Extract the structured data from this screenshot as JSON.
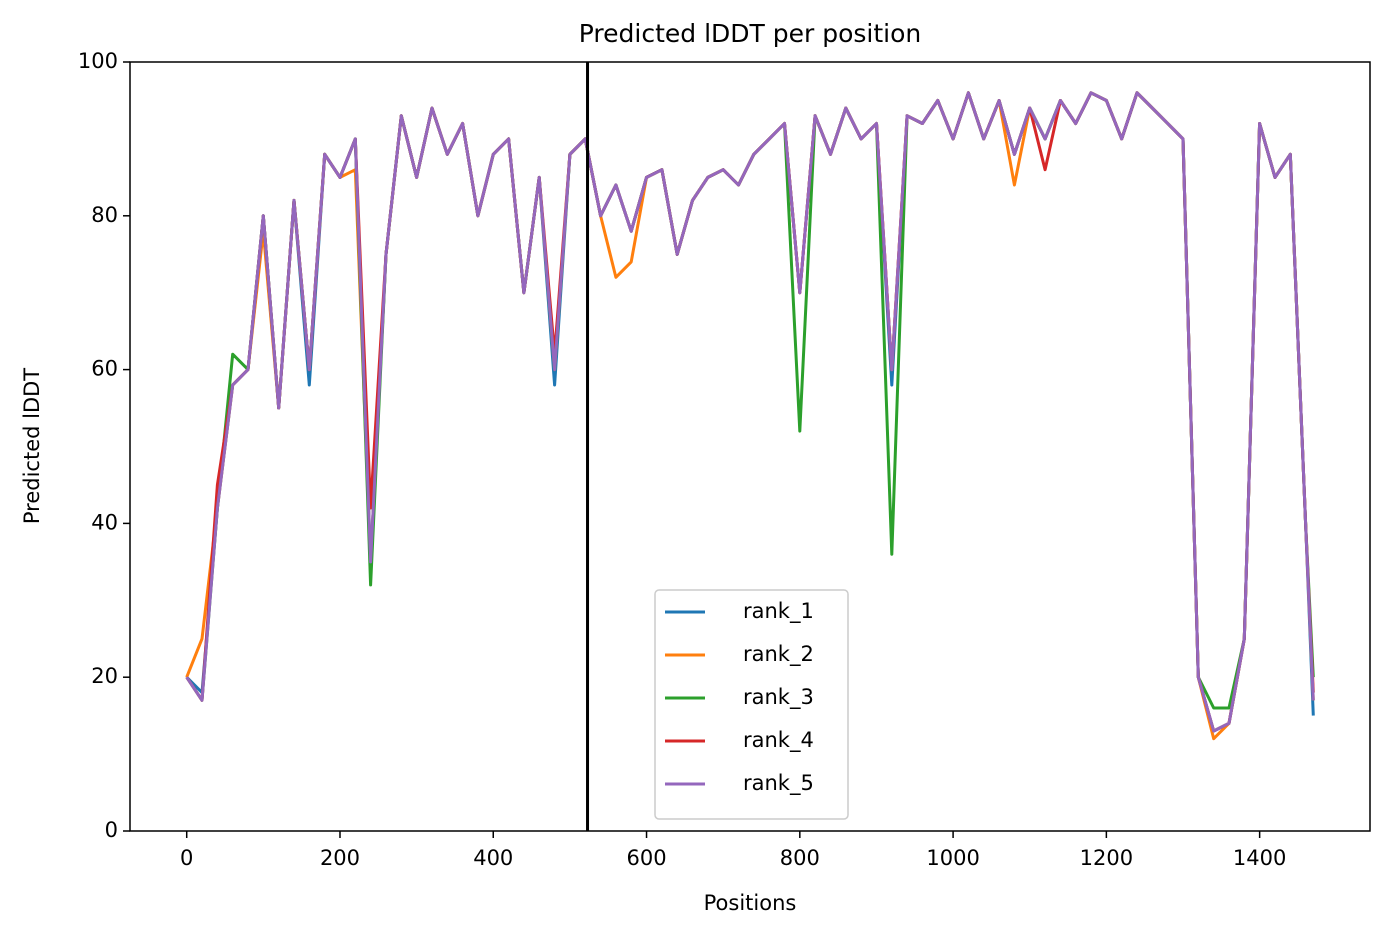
{
  "chart_data": {
    "type": "line",
    "title": "Predicted lDDT per position",
    "xlabel": "Positions",
    "ylabel": "Predicted lDDT",
    "x": [
      0,
      20,
      40,
      60,
      80,
      100,
      120,
      140,
      160,
      180,
      200,
      220,
      240,
      260,
      280,
      300,
      320,
      340,
      360,
      380,
      400,
      420,
      440,
      460,
      480,
      500,
      520,
      540,
      560,
      580,
      600,
      620,
      640,
      660,
      680,
      700,
      720,
      740,
      760,
      780,
      800,
      820,
      840,
      860,
      880,
      900,
      920,
      940,
      960,
      980,
      1000,
      1020,
      1040,
      1060,
      1080,
      1100,
      1120,
      1140,
      1160,
      1180,
      1200,
      1220,
      1240,
      1260,
      1280,
      1300,
      1320,
      1340,
      1360,
      1380,
      1400,
      1420,
      1440,
      1460,
      1470
    ],
    "series": [
      {
        "name": "rank_1",
        "color": "#1f77b4",
        "values": [
          20,
          18,
          42,
          58,
          60,
          80,
          55,
          82,
          58,
          88,
          85,
          90,
          35,
          75,
          93,
          85,
          94,
          88,
          92,
          80,
          88,
          90,
          70,
          85,
          58,
          88,
          90,
          80,
          84,
          78,
          85,
          86,
          75,
          82,
          85,
          86,
          84,
          88,
          90,
          92,
          70,
          93,
          88,
          94,
          90,
          92,
          58,
          93,
          92,
          95,
          90,
          96,
          90,
          95,
          88,
          94,
          90,
          95,
          92,
          96,
          95,
          90,
          96,
          94,
          92,
          90,
          20,
          13,
          14,
          25,
          92,
          85,
          88,
          40,
          15
        ]
      },
      {
        "name": "rank_2",
        "color": "#ff7f0e",
        "values": [
          20,
          25,
          42,
          58,
          60,
          78,
          55,
          82,
          60,
          88,
          85,
          86,
          35,
          75,
          93,
          85,
          94,
          88,
          92,
          80,
          88,
          90,
          70,
          85,
          60,
          88,
          90,
          80,
          72,
          74,
          85,
          86,
          75,
          82,
          85,
          86,
          84,
          88,
          90,
          92,
          70,
          93,
          88,
          94,
          90,
          92,
          60,
          93,
          92,
          95,
          90,
          96,
          90,
          95,
          84,
          94,
          90,
          95,
          92,
          96,
          95,
          90,
          96,
          94,
          92,
          90,
          20,
          12,
          14,
          25,
          92,
          85,
          88,
          40,
          17
        ]
      },
      {
        "name": "rank_3",
        "color": "#2ca02c",
        "values": [
          20,
          17,
          42,
          62,
          60,
          80,
          55,
          82,
          60,
          88,
          85,
          90,
          32,
          75,
          93,
          85,
          94,
          88,
          92,
          80,
          88,
          90,
          70,
          85,
          60,
          88,
          90,
          80,
          84,
          78,
          85,
          86,
          75,
          82,
          85,
          86,
          84,
          88,
          90,
          92,
          52,
          93,
          88,
          94,
          90,
          92,
          36,
          93,
          92,
          95,
          90,
          96,
          90,
          95,
          88,
          94,
          90,
          95,
          92,
          96,
          95,
          90,
          96,
          94,
          92,
          90,
          20,
          16,
          16,
          25,
          92,
          85,
          88,
          40,
          20
        ]
      },
      {
        "name": "rank_4",
        "color": "#d62728",
        "values": [
          20,
          17,
          45,
          58,
          60,
          80,
          55,
          82,
          60,
          88,
          85,
          90,
          42,
          75,
          93,
          85,
          94,
          88,
          92,
          80,
          88,
          90,
          70,
          85,
          62,
          88,
          90,
          80,
          84,
          78,
          85,
          86,
          75,
          82,
          85,
          86,
          84,
          88,
          90,
          92,
          70,
          93,
          88,
          94,
          90,
          92,
          60,
          93,
          92,
          95,
          90,
          96,
          90,
          95,
          88,
          94,
          86,
          95,
          92,
          96,
          95,
          90,
          96,
          94,
          92,
          90,
          20,
          13,
          14,
          25,
          92,
          85,
          88,
          40,
          18
        ]
      },
      {
        "name": "rank_5",
        "color": "#9467bd",
        "values": [
          20,
          17,
          42,
          58,
          60,
          80,
          55,
          82,
          60,
          88,
          85,
          90,
          35,
          75,
          93,
          85,
          94,
          88,
          92,
          80,
          88,
          90,
          70,
          85,
          60,
          88,
          90,
          80,
          84,
          78,
          85,
          86,
          75,
          82,
          85,
          86,
          84,
          88,
          90,
          92,
          70,
          93,
          88,
          94,
          90,
          92,
          60,
          93,
          92,
          95,
          90,
          96,
          90,
          95,
          88,
          94,
          90,
          95,
          92,
          96,
          95,
          90,
          96,
          94,
          92,
          90,
          20,
          13,
          14,
          25,
          92,
          85,
          88,
          40,
          17
        ]
      }
    ],
    "vline": 523,
    "vline_color": "#000000",
    "xlim": [
      -74,
      1544
    ],
    "ylim": [
      0,
      100
    ],
    "xticks": [
      0,
      200,
      400,
      600,
      800,
      1000,
      1200,
      1400
    ],
    "yticks": [
      0,
      20,
      40,
      60,
      80,
      100
    ],
    "grid": false,
    "legend": "lower center"
  }
}
